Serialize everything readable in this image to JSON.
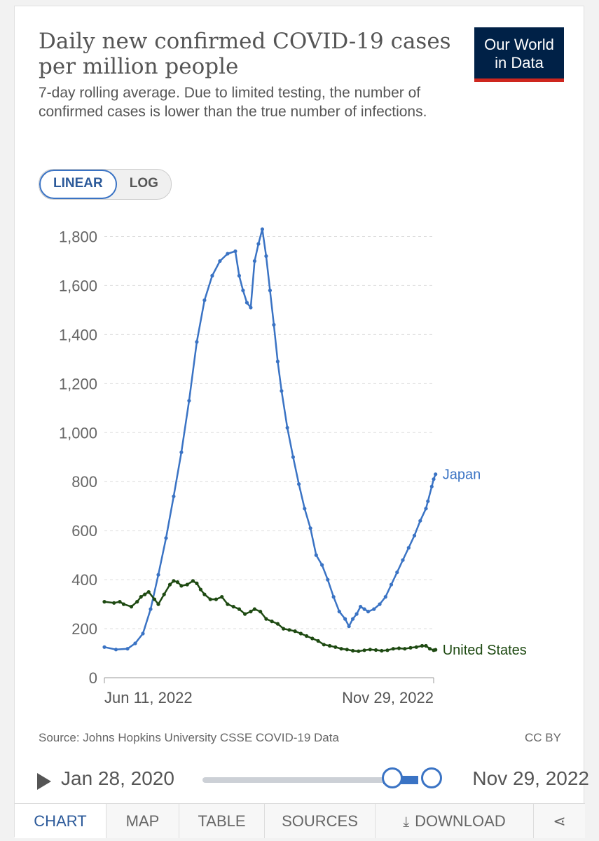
{
  "header": {
    "title": "Daily new confirmed COVID-19 cases per million people",
    "subtitle": "7-day rolling average. Due to limited testing, the number of confirmed cases is lower than the true number of infections.",
    "logo_line1": "Our World",
    "logo_line2": "in Data"
  },
  "scale_toggle": {
    "linear": "LINEAR",
    "log": "LOG",
    "selected": "LINEAR"
  },
  "chart_data": {
    "type": "line",
    "title": "Daily new confirmed COVID-19 cases per million people",
    "xlabel": "",
    "ylabel": "",
    "x_ticks": [
      "Jun 11, 2022",
      "Nov 29, 2022"
    ],
    "y_ticks": [
      "0",
      "200",
      "400",
      "600",
      "800",
      "1,000",
      "1,200",
      "1,400",
      "1,600",
      "1,800"
    ],
    "ylim": [
      0,
      1800
    ],
    "grid": "horizontal dashed",
    "x_range_days": [
      0,
      171
    ],
    "series": [
      {
        "name": "Japan",
        "color": "#3a73c4",
        "points": [
          [
            0,
            125
          ],
          [
            6,
            115
          ],
          [
            12,
            118
          ],
          [
            16,
            140
          ],
          [
            20,
            180
          ],
          [
            24,
            280
          ],
          [
            28,
            420
          ],
          [
            32,
            570
          ],
          [
            36,
            740
          ],
          [
            40,
            920
          ],
          [
            44,
            1130
          ],
          [
            48,
            1370
          ],
          [
            52,
            1540
          ],
          [
            56,
            1640
          ],
          [
            60,
            1700
          ],
          [
            64,
            1730
          ],
          [
            68,
            1740
          ],
          [
            70,
            1640
          ],
          [
            72,
            1580
          ],
          [
            74,
            1530
          ],
          [
            76,
            1510
          ],
          [
            78,
            1700
          ],
          [
            80,
            1770
          ],
          [
            82,
            1830
          ],
          [
            84,
            1720
          ],
          [
            86,
            1580
          ],
          [
            88,
            1440
          ],
          [
            90,
            1290
          ],
          [
            92,
            1170
          ],
          [
            95,
            1020
          ],
          [
            98,
            900
          ],
          [
            101,
            790
          ],
          [
            104,
            690
          ],
          [
            107,
            610
          ],
          [
            110,
            500
          ],
          [
            113,
            460
          ],
          [
            116,
            400
          ],
          [
            119,
            330
          ],
          [
            122,
            270
          ],
          [
            125,
            240
          ],
          [
            127,
            210
          ],
          [
            129,
            240
          ],
          [
            131,
            260
          ],
          [
            133,
            290
          ],
          [
            135,
            280
          ],
          [
            137,
            270
          ],
          [
            140,
            280
          ],
          [
            143,
            300
          ],
          [
            146,
            330
          ],
          [
            149,
            380
          ],
          [
            152,
            430
          ],
          [
            155,
            480
          ],
          [
            158,
            530
          ],
          [
            161,
            580
          ],
          [
            164,
            640
          ],
          [
            167,
            690
          ],
          [
            168,
            720
          ],
          [
            170,
            780
          ],
          [
            171,
            810
          ],
          [
            172,
            830
          ]
        ]
      },
      {
        "name": "United States",
        "color": "#1e4a12",
        "points": [
          [
            0,
            310
          ],
          [
            5,
            305
          ],
          [
            8,
            310
          ],
          [
            10,
            300
          ],
          [
            14,
            290
          ],
          [
            17,
            310
          ],
          [
            19,
            330
          ],
          [
            21,
            340
          ],
          [
            23,
            350
          ],
          [
            26,
            320
          ],
          [
            28,
            300
          ],
          [
            31,
            340
          ],
          [
            34,
            380
          ],
          [
            36,
            395
          ],
          [
            38,
            390
          ],
          [
            40,
            375
          ],
          [
            43,
            380
          ],
          [
            46,
            395
          ],
          [
            48,
            385
          ],
          [
            50,
            360
          ],
          [
            52,
            340
          ],
          [
            55,
            320
          ],
          [
            58,
            320
          ],
          [
            61,
            330
          ],
          [
            64,
            300
          ],
          [
            67,
            290
          ],
          [
            70,
            280
          ],
          [
            73,
            260
          ],
          [
            76,
            270
          ],
          [
            78,
            280
          ],
          [
            81,
            270
          ],
          [
            84,
            240
          ],
          [
            87,
            230
          ],
          [
            90,
            220
          ],
          [
            93,
            200
          ],
          [
            96,
            195
          ],
          [
            99,
            190
          ],
          [
            102,
            180
          ],
          [
            105,
            170
          ],
          [
            108,
            160
          ],
          [
            111,
            150
          ],
          [
            114,
            135
          ],
          [
            117,
            130
          ],
          [
            120,
            125
          ],
          [
            123,
            118
          ],
          [
            126,
            115
          ],
          [
            129,
            110
          ],
          [
            132,
            108
          ],
          [
            135,
            112
          ],
          [
            138,
            115
          ],
          [
            141,
            113
          ],
          [
            144,
            110
          ],
          [
            147,
            112
          ],
          [
            150,
            118
          ],
          [
            153,
            120
          ],
          [
            156,
            118
          ],
          [
            159,
            122
          ],
          [
            162,
            125
          ],
          [
            165,
            130
          ],
          [
            167,
            130
          ],
          [
            169,
            118
          ],
          [
            171,
            112
          ],
          [
            172,
            114
          ]
        ]
      }
    ]
  },
  "footer": {
    "source": "Source: Johns Hopkins University CSSE COVID-19 Data",
    "license": "CC BY"
  },
  "timeline": {
    "start": "Jan 28, 2020",
    "end": "Nov 29, 2022"
  },
  "tabs": [
    "CHART",
    "MAP",
    "TABLE",
    "SOURCES",
    "DOWNLOAD"
  ],
  "colors": {
    "accent": "#3a73c4",
    "japan": "#3a73c4",
    "us": "#1e4a12",
    "logo_bg": "#002147",
    "logo_stripe": "#ce261e"
  }
}
